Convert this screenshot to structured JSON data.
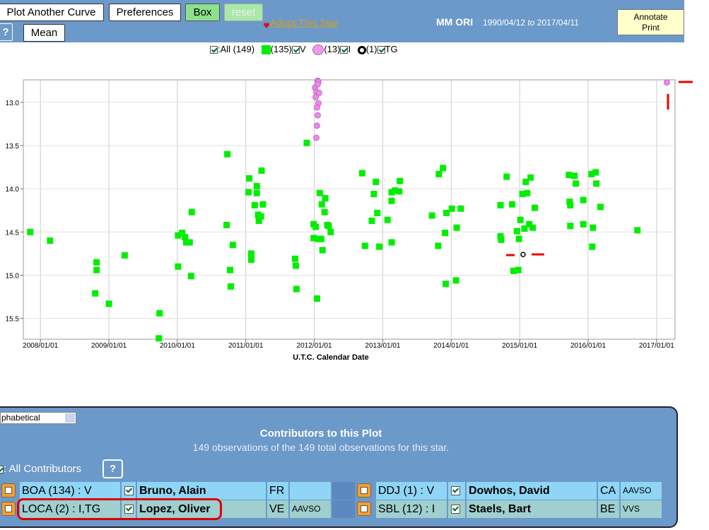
{
  "toolbar": {
    "buttons": [
      "Plot Another Curve",
      "Preferences",
      "Box",
      "reset"
    ],
    "help": "?",
    "mean": "Mean",
    "adopt": "Adopt This Star",
    "annotate": "Annotate",
    "print": "Print"
  },
  "header": {
    "star": "MM ORI",
    "start": "1990/04/12",
    "to": "to",
    "end": "2017/04/11"
  },
  "legend": {
    "all": ":All (149)",
    "v_count": "(135)",
    "i_count": "(13)",
    "tg_count": "(1)"
  },
  "chart_data": {
    "type": "scatter",
    "x_label": "U.T.C. Calendar Date",
    "xlim": [
      2007.75,
      2017.27
    ],
    "ylim": [
      12.74,
      15.74
    ],
    "y_inverted": true,
    "grid": true,
    "xticks": [
      {
        "value": 2008,
        "label": "2008/01/01"
      },
      {
        "value": 2009,
        "label": "2009/01/01"
      },
      {
        "value": 2010,
        "label": "2010/01/01"
      },
      {
        "value": 2011,
        "label": "2011/01/01"
      },
      {
        "value": 2012,
        "label": "2012/01/01"
      },
      {
        "value": 2013,
        "label": "2013/01/01"
      },
      {
        "value": 2014,
        "label": "2014/01/01"
      },
      {
        "value": 2015,
        "label": "2015/01/01"
      },
      {
        "value": 2016,
        "label": "2016/01/01"
      },
      {
        "value": 2017,
        "label": "2017/01/01"
      }
    ],
    "yticks": [
      {
        "value": 13,
        "label": "13.0"
      },
      13.5,
      {
        "value": 14,
        "label": "14.0"
      },
      14.5,
      {
        "value": 15,
        "label": "15.0"
      },
      15.5
    ],
    "series": [
      {
        "name": "V",
        "color": "#00ee00",
        "marker": "square",
        "x": [
          2007.85,
          2008.14,
          2008.82,
          2008.82,
          2008.8,
          2009.0,
          2009.23,
          2009.74,
          2009.73,
          2010.01,
          2010.07,
          2010.11,
          2010.13,
          2010.18,
          2010.01,
          2010.2,
          2010.21,
          2010.73,
          2010.72,
          2010.81,
          2010.77,
          2010.78,
          2011.05,
          2011.04,
          2011.08,
          2011.08,
          2011.13,
          2011.16,
          2011.16,
          2011.18,
          2011.19,
          2011.23,
          2011.25,
          2011.22,
          2011.72,
          2011.73,
          2011.74,
          2011.89,
          2011.99,
          2011.99,
          2012.02,
          2012.04,
          2012.05,
          2012.08,
          2012.11,
          2012.1,
          2012.12,
          2012.15,
          2012.16,
          2012.19,
          2012.21,
          2012.24,
          2012.7,
          2012.74,
          2012.84,
          2012.87,
          2012.9,
          2012.92,
          2012.95,
          2013.07,
          2013.13,
          2013.13,
          2013.13,
          2013.18,
          2013.24,
          2013.25,
          2013.72,
          2013.81,
          2013.82,
          2013.88,
          2013.91,
          2013.92,
          2013.93,
          2014.01,
          2014.07,
          2014.08,
          2014.14,
          2014.72,
          2014.72,
          2014.73,
          2014.81,
          2014.89,
          2014.91,
          2014.96,
          2014.98,
          2014.99,
          2015.01,
          2015.04,
          2015.07,
          2015.09,
          2015.11,
          2015.14,
          2015.16,
          2015.19,
          2015.22,
          2015.72,
          2015.73,
          2015.74,
          2015.74,
          2015.8,
          2015.82,
          2015.93,
          2015.93,
          2016.05,
          2016.06,
          2016.07,
          2016.11,
          2016.12,
          2016.18,
          2016.72
        ],
        "values": [
          14.5,
          14.6,
          14.85,
          14.94,
          15.21,
          15.33,
          14.77,
          15.44,
          15.73,
          14.54,
          14.51,
          14.56,
          14.62,
          14.62,
          14.9,
          15.01,
          14.27,
          13.6,
          14.42,
          14.65,
          14.94,
          15.13,
          13.88,
          14.04,
          14.75,
          14.82,
          14.19,
          13.97,
          14.05,
          14.3,
          14.37,
          13.79,
          14.18,
          14.32,
          14.81,
          14.89,
          15.16,
          13.47,
          14.41,
          14.57,
          14.44,
          15.27,
          14.58,
          14.05,
          14.18,
          14.58,
          14.71,
          14.27,
          14.11,
          14.42,
          14.43,
          14.5,
          13.82,
          14.66,
          14.37,
          14.06,
          13.92,
          14.28,
          14.67,
          14.36,
          14.04,
          14.14,
          14.62,
          14.02,
          14.03,
          13.91,
          14.31,
          14.66,
          13.83,
          13.76,
          14.51,
          15.1,
          14.28,
          14.23,
          15.06,
          14.45,
          14.23,
          14.19,
          14.55,
          14.59,
          13.86,
          14.18,
          14.95,
          14.49,
          14.94,
          14.58,
          14.36,
          14.06,
          14.46,
          13.92,
          14.05,
          14.41,
          13.87,
          14.45,
          14.22,
          13.84,
          14.15,
          14.19,
          14.43,
          13.85,
          13.94,
          14.41,
          14.13,
          13.83,
          14.67,
          14.45,
          13.81,
          13.94,
          14.21,
          14.48
        ]
      },
      {
        "name": "I",
        "color": "#ee88ee",
        "marker": "hexagon",
        "x": [
          2012.05,
          2012.06,
          2012.01,
          2012.03,
          2012.07,
          2012.02,
          2012.06,
          2012.04,
          2012.05,
          2012.04,
          2012.03,
          2012.05,
          2017.15
        ],
        "values": [
          12.75,
          12.76,
          12.83,
          12.88,
          12.89,
          12.94,
          13.01,
          13.06,
          13.15,
          13.27,
          13.41,
          12.79,
          12.77
        ]
      },
      {
        "name": "TG",
        "color": "#000000",
        "marker": "ring",
        "x": [
          2015.05
        ],
        "values": [
          14.76
        ]
      }
    ]
  },
  "contributors": {
    "sort": "phabetical",
    "title": "Contributors to this Plot",
    "subtitle": "149 observations of the 149 total observations for this star.",
    "all": ": All Contributors",
    "help": "?",
    "rows": [
      [
        {
          "code": "BOA (134) : V",
          "name": "Bruno, Alain",
          "country": "FR"
        },
        {
          "code": "DDJ (1) : V",
          "name": "Dowhos, David",
          "country": "CA",
          "org": "AAVSO"
        }
      ],
      [
        {
          "code": "LOCA (2) : I,TG",
          "name": "Lopez, Oliver",
          "country": "VE",
          "org": "AAVSO"
        },
        {
          "code": "SBL (12) : I",
          "name": "Staels, Bart",
          "country": "BE",
          "org": "VVS"
        }
      ]
    ]
  }
}
